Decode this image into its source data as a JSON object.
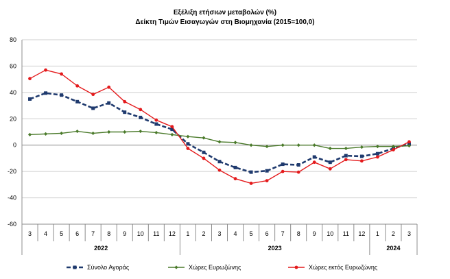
{
  "chart_data": {
    "type": "line",
    "title": "Εξέλιξη ετήσιων μεταβολών (%)",
    "subtitle": "Δείκτη Τιμών Εισαγωγών στη Βιομηχανία (2015=100,0)",
    "x": [
      "3",
      "4",
      "5",
      "6",
      "7",
      "8",
      "9",
      "10",
      "11",
      "12",
      "1",
      "2",
      "3",
      "4",
      "5",
      "6",
      "7",
      "8",
      "9",
      "10",
      "11",
      "12",
      "1",
      "2",
      "3"
    ],
    "year_groups": [
      {
        "label": "2022",
        "count": 10
      },
      {
        "label": "2023",
        "count": 12
      },
      {
        "label": "2024",
        "count": 3
      }
    ],
    "ylim": [
      -60,
      80
    ],
    "yticks": [
      -60,
      -40,
      -20,
      0,
      20,
      40,
      60,
      80
    ],
    "grid": true,
    "legend_position": "bottom",
    "series": [
      {
        "name": "Σύνολο Αγοράς",
        "color": "#1f3a6e",
        "style": "dashed",
        "marker": "square",
        "values": [
          35,
          39.5,
          38,
          33,
          28,
          32,
          25,
          21,
          16,
          12,
          1,
          -5.5,
          -12.5,
          -17,
          -20.5,
          -19.5,
          -14.5,
          -15,
          -9,
          -13,
          -8,
          -8.5,
          -6.5,
          -2.5,
          1
        ]
      },
      {
        "name": "Χώρες Ευρωζώνης",
        "color": "#4a7a2a",
        "style": "solid",
        "marker": "diamond",
        "values": [
          8,
          8.5,
          9,
          10.5,
          9,
          10,
          10,
          10.5,
          9.5,
          8,
          6.5,
          5.5,
          2.5,
          2,
          0,
          -1,
          0,
          0,
          0,
          -2.5,
          -2.5,
          -1.5,
          -1,
          -1,
          -0.5
        ]
      },
      {
        "name": "Χώρες εκτός Ευρωζώνης",
        "color": "#e41a1c",
        "style": "solid",
        "marker": "circle",
        "values": [
          50.5,
          57,
          54,
          45,
          38.5,
          44,
          33,
          27,
          19,
          14,
          -2.5,
          -10,
          -19,
          -25.5,
          -29,
          -27,
          -20,
          -20.5,
          -13,
          -18,
          -11,
          -12,
          -9,
          -3.5,
          2.5
        ]
      }
    ]
  },
  "colors": {
    "grid": "#cfcfcf",
    "axis": "#8c8c8c"
  }
}
